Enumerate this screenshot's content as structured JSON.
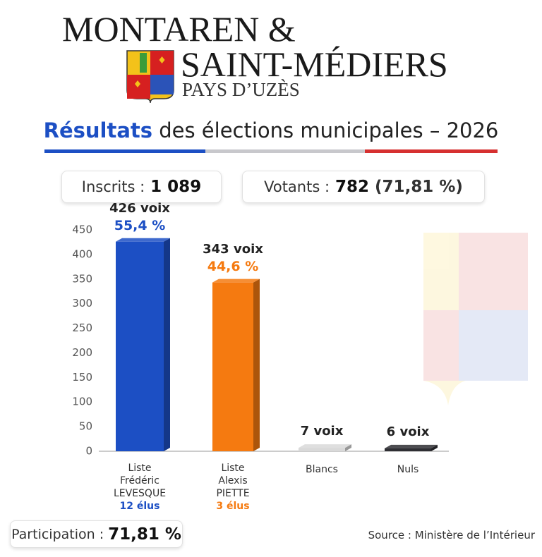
{
  "header": {
    "line1": "MONTAREN &",
    "line2": "SAINT-MÉDIERS",
    "line3": "PAYS D’UZÈS"
  },
  "subtitle": {
    "emphasis": "Résultats",
    "rest": "des élections municipales – 2026"
  },
  "stats": {
    "registered_label": "Inscrits :",
    "registered": "1 089",
    "voters_label": "Votants :",
    "voters": "782",
    "turnout": "(71,81 %)"
  },
  "chart_data": {
    "type": "bar",
    "categories": [
      "Liste Frédéric LEVESQUE",
      "Liste Alexis PIETTE",
      "Blancs",
      "Nuls"
    ],
    "values": [
      426,
      343,
      7,
      6
    ],
    "value_labels": [
      "426 voix",
      "343 voix",
      "7 voix",
      "6 voix"
    ],
    "share_labels": [
      "55,4 %",
      "44,6 %",
      null,
      null
    ],
    "seat_labels": [
      "12 élus",
      "3 élus",
      null,
      null
    ],
    "colors": [
      "#1c4fc4",
      "#f57a10",
      "#d9d9d9",
      "#2e2e33"
    ],
    "ylim": [
      0,
      450
    ],
    "yticks": [
      0,
      50,
      100,
      150,
      200,
      250,
      300,
      350,
      400,
      450
    ],
    "grid": false
  },
  "footer": {
    "participation_label": "Participation :",
    "participation": "71,81 %",
    "source": "Source : Ministère de l’Intérieur"
  }
}
